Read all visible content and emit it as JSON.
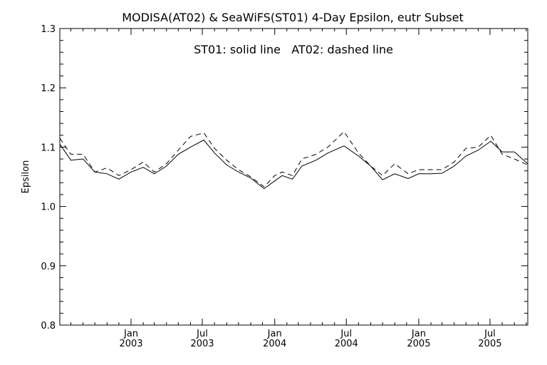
{
  "chart_data": {
    "type": "line",
    "title": "MODISA(AT02) & SeaWiFS(ST01) 4-Day Epsilon, eutr Subset",
    "annotation": "ST01: solid line   AT02: dashed line",
    "xlabel": "",
    "ylabel": "Epsilon",
    "xlim": [
      "2002-07-04",
      "2005-10-05"
    ],
    "ylim": [
      0.8,
      1.3
    ],
    "yticks": [
      "0.8",
      "0.9",
      "1.0",
      "1.1",
      "1.2",
      "1.3"
    ],
    "xticks": [
      {
        "date": "2003-01-01",
        "label1": "Jan",
        "label2": "2003"
      },
      {
        "date": "2003-07-01",
        "label1": "Jul",
        "label2": "2003"
      },
      {
        "date": "2004-01-01",
        "label1": "Jan",
        "label2": "2004"
      },
      {
        "date": "2004-07-01",
        "label1": "Jul",
        "label2": "2004"
      },
      {
        "date": "2005-01-01",
        "label1": "Jan",
        "label2": "2005"
      },
      {
        "date": "2005-07-01",
        "label1": "Jul",
        "label2": "2005"
      }
    ],
    "series": [
      {
        "name": "ST01",
        "style": "solid",
        "color": "#000000",
        "points": [
          [
            "2002-07-04",
            1.105
          ],
          [
            "2002-08-01",
            1.078
          ],
          [
            "2002-09-01",
            1.08
          ],
          [
            "2002-10-01",
            1.058
          ],
          [
            "2002-11-01",
            1.055
          ],
          [
            "2002-12-01",
            1.046
          ],
          [
            "2003-01-01",
            1.058
          ],
          [
            "2003-02-01",
            1.066
          ],
          [
            "2003-03-01",
            1.055
          ],
          [
            "2003-04-01",
            1.068
          ],
          [
            "2003-05-01",
            1.088
          ],
          [
            "2003-06-01",
            1.1
          ],
          [
            "2003-07-05",
            1.112
          ],
          [
            "2003-08-01",
            1.09
          ],
          [
            "2003-09-01",
            1.07
          ],
          [
            "2003-10-01",
            1.058
          ],
          [
            "2003-11-01",
            1.048
          ],
          [
            "2003-12-05",
            1.03
          ],
          [
            "2004-01-01",
            1.043
          ],
          [
            "2004-01-20",
            1.052
          ],
          [
            "2004-02-15",
            1.046
          ],
          [
            "2004-03-10",
            1.068
          ],
          [
            "2004-04-15",
            1.078
          ],
          [
            "2004-05-15",
            1.09
          ],
          [
            "2004-06-25",
            1.102
          ],
          [
            "2004-08-01",
            1.085
          ],
          [
            "2004-09-01",
            1.068
          ],
          [
            "2004-10-01",
            1.045
          ],
          [
            "2004-11-01",
            1.055
          ],
          [
            "2004-12-05",
            1.047
          ],
          [
            "2005-01-01",
            1.055
          ],
          [
            "2005-02-01",
            1.055
          ],
          [
            "2005-03-01",
            1.056
          ],
          [
            "2005-04-01",
            1.068
          ],
          [
            "2005-05-01",
            1.085
          ],
          [
            "2005-06-01",
            1.095
          ],
          [
            "2005-07-03",
            1.11
          ],
          [
            "2005-08-01",
            1.092
          ],
          [
            "2005-09-01",
            1.092
          ],
          [
            "2005-10-05",
            1.072
          ]
        ]
      },
      {
        "name": "AT02",
        "style": "dashed",
        "color": "#000000",
        "points": [
          [
            "2002-07-04",
            1.115
          ],
          [
            "2002-08-01",
            1.088
          ],
          [
            "2002-09-01",
            1.088
          ],
          [
            "2002-10-01",
            1.058
          ],
          [
            "2002-11-01",
            1.065
          ],
          [
            "2002-12-01",
            1.052
          ],
          [
            "2003-01-01",
            1.062
          ],
          [
            "2003-02-01",
            1.075
          ],
          [
            "2003-03-01",
            1.058
          ],
          [
            "2003-04-01",
            1.072
          ],
          [
            "2003-05-01",
            1.095
          ],
          [
            "2003-06-01",
            1.118
          ],
          [
            "2003-07-05",
            1.124
          ],
          [
            "2003-08-01",
            1.098
          ],
          [
            "2003-09-01",
            1.078
          ],
          [
            "2003-10-01",
            1.062
          ],
          [
            "2003-11-01",
            1.05
          ],
          [
            "2003-12-05",
            1.033
          ],
          [
            "2004-01-01",
            1.052
          ],
          [
            "2004-01-20",
            1.058
          ],
          [
            "2004-02-15",
            1.052
          ],
          [
            "2004-03-10",
            1.08
          ],
          [
            "2004-04-15",
            1.088
          ],
          [
            "2004-05-15",
            1.1
          ],
          [
            "2004-06-25",
            1.126
          ],
          [
            "2004-08-01",
            1.09
          ],
          [
            "2004-09-01",
            1.068
          ],
          [
            "2004-10-01",
            1.052
          ],
          [
            "2004-11-01",
            1.072
          ],
          [
            "2004-12-05",
            1.055
          ],
          [
            "2005-01-01",
            1.062
          ],
          [
            "2005-02-01",
            1.062
          ],
          [
            "2005-03-01",
            1.062
          ],
          [
            "2005-04-01",
            1.075
          ],
          [
            "2005-05-01",
            1.098
          ],
          [
            "2005-06-01",
            1.1
          ],
          [
            "2005-07-03",
            1.12
          ],
          [
            "2005-08-01",
            1.088
          ],
          [
            "2005-09-01",
            1.08
          ],
          [
            "2005-10-05",
            1.07
          ]
        ]
      }
    ]
  }
}
